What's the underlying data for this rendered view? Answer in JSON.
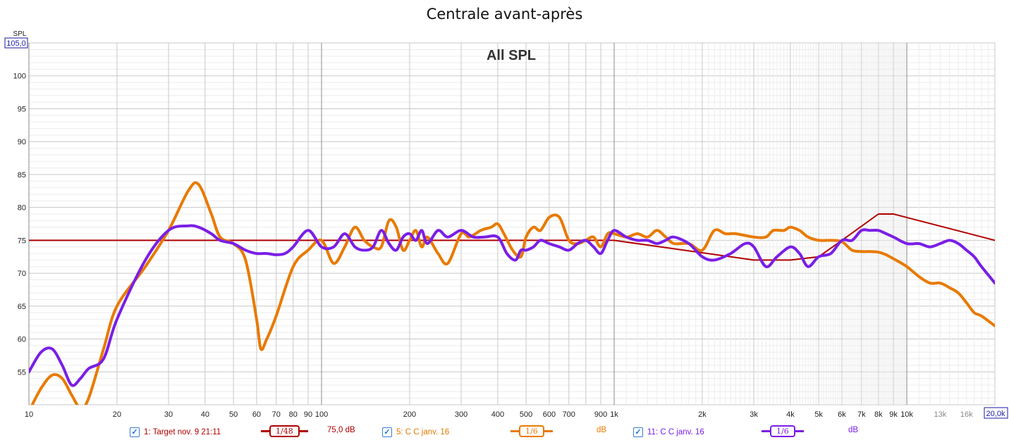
{
  "chart_data": {
    "type": "line",
    "title": "Centrale avant-après",
    "subtitle": "All SPL",
    "ylabel": "SPL",
    "x_scale": "log",
    "xlim": [
      10,
      20000
    ],
    "ylim": [
      50,
      105
    ],
    "ymax_label": "105,0",
    "xmax_label": "20,0k",
    "y_ticks": [
      55,
      60,
      65,
      70,
      75,
      80,
      85,
      90,
      95,
      100
    ],
    "x_ticks": [
      {
        "v": 10,
        "label": "10"
      },
      {
        "v": 20,
        "label": "20"
      },
      {
        "v": 30,
        "label": "30"
      },
      {
        "v": 40,
        "label": "40"
      },
      {
        "v": 50,
        "label": "50"
      },
      {
        "v": 60,
        "label": "60"
      },
      {
        "v": 70,
        "label": "70"
      },
      {
        "v": 80,
        "label": "80"
      },
      {
        "v": 90,
        "label": "90"
      },
      {
        "v": 100,
        "label": "100"
      },
      {
        "v": 200,
        "label": "200"
      },
      {
        "v": 300,
        "label": "300"
      },
      {
        "v": 400,
        "label": "400"
      },
      {
        "v": 500,
        "label": "500"
      },
      {
        "v": 600,
        "label": "600"
      },
      {
        "v": 700,
        "label": "700"
      },
      {
        "v": 900,
        "label": "900"
      },
      {
        "v": 1000,
        "label": "1k"
      },
      {
        "v": 2000,
        "label": "2k"
      },
      {
        "v": 3000,
        "label": "3k"
      },
      {
        "v": 4000,
        "label": "4k"
      },
      {
        "v": 5000,
        "label": "5k"
      },
      {
        "v": 6000,
        "label": "6k"
      },
      {
        "v": 7000,
        "label": "7k"
      },
      {
        "v": 8000,
        "label": "8k"
      },
      {
        "v": 9000,
        "label": "9k"
      },
      {
        "v": 10000,
        "label": "10k"
      },
      {
        "v": 13000,
        "label": "13k",
        "muted": true
      },
      {
        "v": 16000,
        "label": "16k",
        "muted": true
      }
    ],
    "grid": true,
    "series": [
      {
        "name": "1: Target nov. 9 21:11",
        "color": "#b00000",
        "smoothing": "1/48",
        "offset": "75,0 dB",
        "x": [
          10,
          1000,
          3000,
          4000,
          5000,
          6000,
          8000,
          9000,
          20000
        ],
        "y": [
          75,
          75,
          72,
          72,
          72.5,
          75,
          79,
          79,
          75
        ]
      },
      {
        "name": "5: C C janv. 16",
        "color": "#e87a00",
        "smoothing": "1/6",
        "offset": "dB",
        "x": [
          10,
          11,
          12,
          13,
          14,
          15,
          16,
          18,
          20,
          25,
          30,
          35,
          38,
          42,
          45,
          50,
          55,
          60,
          62,
          65,
          70,
          80,
          90,
          100,
          110,
          120,
          130,
          140,
          150,
          160,
          170,
          180,
          190,
          200,
          210,
          220,
          230,
          250,
          270,
          300,
          320,
          350,
          380,
          400,
          420,
          450,
          480,
          500,
          530,
          560,
          600,
          650,
          700,
          750,
          800,
          850,
          900,
          950,
          1000,
          1100,
          1200,
          1300,
          1400,
          1500,
          1600,
          1800,
          2000,
          2200,
          2400,
          2600,
          3000,
          3300,
          3500,
          3800,
          4000,
          4300,
          4600,
          5000,
          5500,
          6000,
          6500,
          7000,
          7500,
          8000,
          8500,
          9000,
          10000,
          11000,
          12000,
          13000,
          14000,
          15000,
          16000,
          17000,
          18000,
          20000
        ],
        "y": [
          49,
          52.5,
          54.5,
          54,
          51.5,
          49.5,
          51,
          58.5,
          65,
          71,
          76.5,
          82.5,
          83.5,
          79,
          75.5,
          74.5,
          72,
          63,
          58.5,
          60,
          63.5,
          71,
          73.5,
          75,
          71.5,
          74,
          77,
          75,
          74,
          74,
          78,
          77,
          73.5,
          75,
          76.5,
          74,
          75.5,
          73,
          71.5,
          76,
          75.5,
          76.5,
          77,
          77.5,
          76,
          73.5,
          72.5,
          75.5,
          77,
          76.5,
          78.5,
          78.5,
          75,
          74.5,
          75,
          75.5,
          74,
          76,
          76,
          75.5,
          76,
          75.5,
          76.5,
          75.5,
          74.5,
          74.5,
          73.5,
          76.5,
          76,
          76,
          75.5,
          75.5,
          76.5,
          76.5,
          77,
          76.5,
          75.5,
          75,
          75,
          74.8,
          73.5,
          73.3,
          73.3,
          73.2,
          72.8,
          72.2,
          71,
          69.5,
          68.5,
          68.5,
          67.8,
          67,
          65.5,
          64,
          63.5,
          62
        ]
      },
      {
        "name": "11: C C janv. 16",
        "color": "#7a1ee6",
        "smoothing": "1/6",
        "offset": "dB",
        "x": [
          10,
          11,
          12,
          13,
          14,
          15,
          16,
          18,
          20,
          25,
          30,
          35,
          38,
          42,
          45,
          50,
          55,
          60,
          65,
          70,
          75,
          80,
          90,
          100,
          110,
          120,
          130,
          140,
          150,
          160,
          170,
          180,
          190,
          200,
          210,
          220,
          230,
          250,
          270,
          300,
          330,
          360,
          400,
          430,
          460,
          480,
          500,
          530,
          560,
          600,
          650,
          700,
          750,
          800,
          850,
          900,
          950,
          1000,
          1100,
          1200,
          1300,
          1400,
          1500,
          1600,
          1800,
          2000,
          2200,
          2500,
          2800,
          3000,
          3300,
          3600,
          4000,
          4300,
          4600,
          5000,
          5500,
          6000,
          6500,
          7000,
          7500,
          8000,
          8500,
          9000,
          10000,
          11000,
          12000,
          13000,
          14000,
          15000,
          16000,
          17000,
          18000,
          20000
        ],
        "y": [
          55,
          58,
          58.5,
          56,
          53,
          54,
          55.5,
          57,
          63,
          72,
          76.5,
          77.2,
          77,
          76,
          75,
          74.5,
          73.5,
          73,
          73,
          72.8,
          73,
          74,
          76.5,
          74,
          74,
          76,
          74,
          73.5,
          74,
          76.5,
          74.5,
          73.5,
          75.5,
          76,
          75,
          76.5,
          74.5,
          76.5,
          75.5,
          76.5,
          75.5,
          75.5,
          75.5,
          73,
          72,
          73.5,
          73.5,
          74,
          75,
          74.5,
          74,
          73.5,
          74.5,
          75,
          74,
          73,
          75,
          76.5,
          75.5,
          75,
          75,
          74.5,
          75,
          75.5,
          74.5,
          72.5,
          72,
          73,
          74.5,
          74,
          71,
          72.5,
          74,
          73,
          71,
          72.5,
          73,
          75,
          75,
          76.5,
          76.5,
          76.5,
          76,
          75.5,
          74.5,
          74.5,
          74,
          74.5,
          75,
          74.5,
          73.5,
          72.5,
          71,
          68.5
        ]
      }
    ]
  }
}
